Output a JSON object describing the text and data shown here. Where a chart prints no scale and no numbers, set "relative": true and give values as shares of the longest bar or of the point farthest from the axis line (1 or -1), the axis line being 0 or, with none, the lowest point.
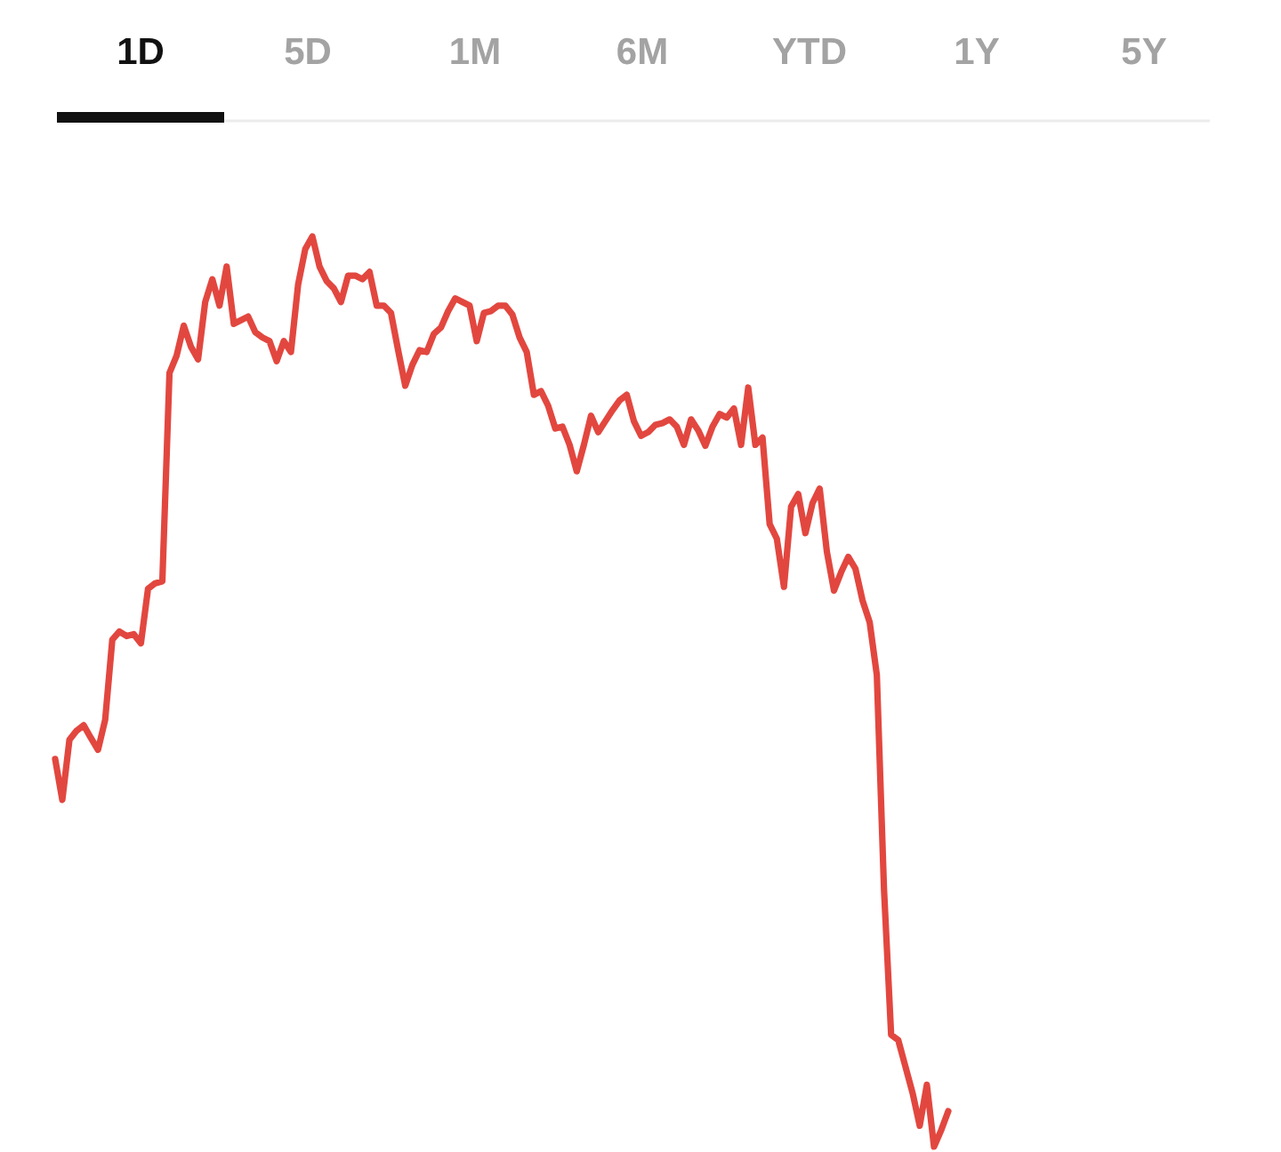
{
  "chart_data": {
    "type": "line",
    "relative": true,
    "categories": [
      null,
      null,
      null,
      null,
      null,
      null,
      null,
      null,
      null,
      null,
      null,
      null,
      null,
      null,
      null,
      null,
      null,
      null,
      null,
      null,
      null,
      null,
      null,
      null,
      null,
      null,
      null,
      null,
      null,
      null,
      null,
      null,
      null,
      null,
      null,
      null,
      null,
      null,
      null,
      null,
      null,
      null,
      null,
      null,
      null,
      null,
      null,
      null,
      null,
      null,
      null,
      null,
      null,
      null,
      null,
      null,
      null,
      null,
      null,
      null,
      null,
      null,
      null,
      null,
      null,
      null,
      null,
      null,
      null,
      null,
      null,
      null,
      null,
      null,
      null,
      null,
      null,
      null,
      null,
      null,
      null,
      null,
      null,
      null,
      null,
      null,
      null,
      null,
      null,
      null,
      null,
      null,
      null,
      null,
      null,
      null,
      null,
      null,
      null,
      null,
      null,
      null,
      null,
      null,
      null,
      null,
      null,
      null,
      null,
      null,
      null,
      null,
      null,
      null,
      null,
      null,
      null,
      null,
      null,
      null,
      null,
      null,
      null,
      null,
      null,
      null
    ],
    "series": [
      {
        "color": "#e2473f",
        "values": [
          0.426,
          0.381,
          0.447,
          0.457,
          0.463,
          0.449,
          0.436,
          0.469,
          0.557,
          0.566,
          0.561,
          0.563,
          0.553,
          0.613,
          0.619,
          0.621,
          0.85,
          0.869,
          0.902,
          0.879,
          0.865,
          0.928,
          0.953,
          0.924,
          0.967,
          0.904,
          0.908,
          0.912,
          0.895,
          0.889,
          0.885,
          0.863,
          0.885,
          0.873,
          0.947,
          0.986,
          1,
          0.967,
          0.951,
          0.943,
          0.928,
          0.957,
          0.957,
          0.953,
          0.961,
          0.924,
          0.924,
          0.916,
          0.875,
          0.836,
          0.859,
          0.875,
          0.873,
          0.893,
          0.9,
          0.918,
          0.932,
          0.928,
          0.924,
          0.885,
          0.916,
          0.918,
          0.924,
          0.924,
          0.914,
          0.889,
          0.873,
          0.826,
          0.83,
          0.814,
          0.789,
          0.791,
          0.771,
          0.742,
          0.771,
          0.803,
          0.785,
          0.797,
          0.809,
          0.82,
          0.826,
          0.797,
          0.781,
          0.785,
          0.793,
          0.795,
          0.799,
          0.791,
          0.771,
          0.799,
          0.787,
          0.77,
          0.791,
          0.805,
          0.801,
          0.811,
          0.771,
          0.834,
          0.771,
          0.779,
          0.684,
          0.668,
          0.615,
          0.703,
          0.717,
          0.674,
          0.707,
          0.723,
          0.654,
          0.611,
          0.631,
          0.648,
          0.635,
          0.6,
          0.576,
          0.518,
          0.283,
          0.123,
          0.117,
          0.088,
          0.059,
          0.023,
          0.068,
          0,
          0.018,
          0.039
        ]
      }
    ],
    "annotations": [
      "1D",
      "5D",
      "1M",
      "6M",
      "YTD",
      "1Y",
      "5Y"
    ]
  }
}
